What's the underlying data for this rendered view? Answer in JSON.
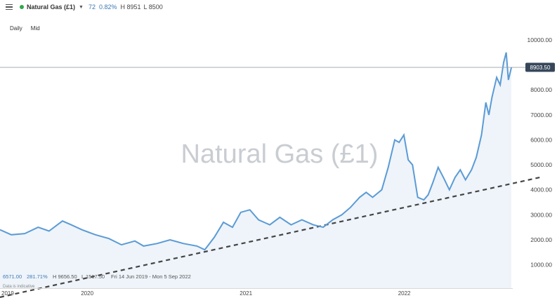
{
  "header": {
    "instrument": "Natural Gas (£1)",
    "change": "72",
    "change_pct": "0.82%",
    "high": "H 8951",
    "low": "L 8500"
  },
  "timeframes": [
    "Daily",
    "Mid"
  ],
  "current_price_label": "8903.50",
  "watermark": "Natural Gas (£1)",
  "stats": {
    "price": "6571.00",
    "pct": "281.71%",
    "high": "H 9656.50",
    "low": "L 1517.50",
    "range": "Fri 14 Jun 2019 - Mon 5 Sep 2022",
    "note": "Data is indicative"
  },
  "colors": {
    "line": "#5b9bd5",
    "fill": "#eef4fa",
    "trend": "#444444",
    "price_tag": "#37475a",
    "up": "#2fa84f"
  },
  "chart_data": {
    "type": "area",
    "x_ticks": [
      "2019",
      "2020",
      "2021",
      "2022"
    ],
    "x_tick_dates": [
      "2019-06-14",
      "2020-01-01",
      "2021-01-01",
      "2022-01-01"
    ],
    "y_ticks": [
      1000,
      2000,
      3000,
      4000,
      5000,
      6000,
      7000,
      8000,
      10000
    ],
    "ylim": [
      500,
      10000
    ],
    "current_price": 8903.5,
    "series": [
      {
        "points": [
          [
            "2019-06-14",
            2400
          ],
          [
            "2019-07-10",
            2200
          ],
          [
            "2019-08-10",
            2250
          ],
          [
            "2019-09-10",
            2500
          ],
          [
            "2019-10-05",
            2350
          ],
          [
            "2019-11-05",
            2750
          ],
          [
            "2019-11-25",
            2600
          ],
          [
            "2019-12-20",
            2400
          ],
          [
            "2020-01-20",
            2200
          ],
          [
            "2020-02-20",
            2050
          ],
          [
            "2020-03-20",
            1800
          ],
          [
            "2020-04-20",
            1950
          ],
          [
            "2020-05-10",
            1750
          ],
          [
            "2020-06-10",
            1850
          ],
          [
            "2020-07-10",
            2000
          ],
          [
            "2020-08-10",
            1850
          ],
          [
            "2020-09-10",
            1750
          ],
          [
            "2020-09-28",
            1600
          ],
          [
            "2020-10-20",
            2100
          ],
          [
            "2020-11-10",
            2700
          ],
          [
            "2020-12-01",
            2500
          ],
          [
            "2020-12-20",
            3100
          ],
          [
            "2021-01-10",
            3200
          ],
          [
            "2021-01-30",
            2800
          ],
          [
            "2021-02-25",
            2600
          ],
          [
            "2021-03-20",
            2900
          ],
          [
            "2021-04-15",
            2600
          ],
          [
            "2021-05-10",
            2800
          ],
          [
            "2021-06-05",
            2600
          ],
          [
            "2021-06-28",
            2500
          ],
          [
            "2021-07-20",
            2800
          ],
          [
            "2021-08-10",
            3000
          ],
          [
            "2021-08-30",
            3300
          ],
          [
            "2021-09-20",
            3700
          ],
          [
            "2021-10-05",
            3900
          ],
          [
            "2021-10-20",
            3700
          ],
          [
            "2021-11-10",
            4000
          ],
          [
            "2021-11-25",
            4900
          ],
          [
            "2021-12-10",
            6000
          ],
          [
            "2021-12-20",
            5900
          ],
          [
            "2021-12-31",
            6200
          ],
          [
            "2022-01-10",
            5200
          ],
          [
            "2022-01-20",
            5000
          ],
          [
            "2022-02-01",
            3700
          ],
          [
            "2022-02-15",
            3600
          ],
          [
            "2022-02-25",
            3800
          ],
          [
            "2022-03-08",
            4300
          ],
          [
            "2022-03-20",
            4900
          ],
          [
            "2022-04-01",
            4500
          ],
          [
            "2022-04-15",
            4000
          ],
          [
            "2022-04-28",
            4500
          ],
          [
            "2022-05-10",
            4800
          ],
          [
            "2022-05-22",
            4400
          ],
          [
            "2022-06-05",
            4800
          ],
          [
            "2022-06-16",
            5300
          ],
          [
            "2022-06-28",
            6200
          ],
          [
            "2022-07-08",
            7500
          ],
          [
            "2022-07-15",
            7000
          ],
          [
            "2022-07-22",
            7700
          ],
          [
            "2022-08-02",
            8500
          ],
          [
            "2022-08-10",
            8200
          ],
          [
            "2022-08-18",
            9100
          ],
          [
            "2022-08-24",
            9500
          ],
          [
            "2022-08-29",
            8400
          ],
          [
            "2022-09-05",
            8903.5
          ]
        ]
      }
    ],
    "trendline": {
      "start": [
        "2019-06-14",
        -300
      ],
      "end": [
        "2022-11-10",
        4500
      ]
    },
    "grid": false
  }
}
